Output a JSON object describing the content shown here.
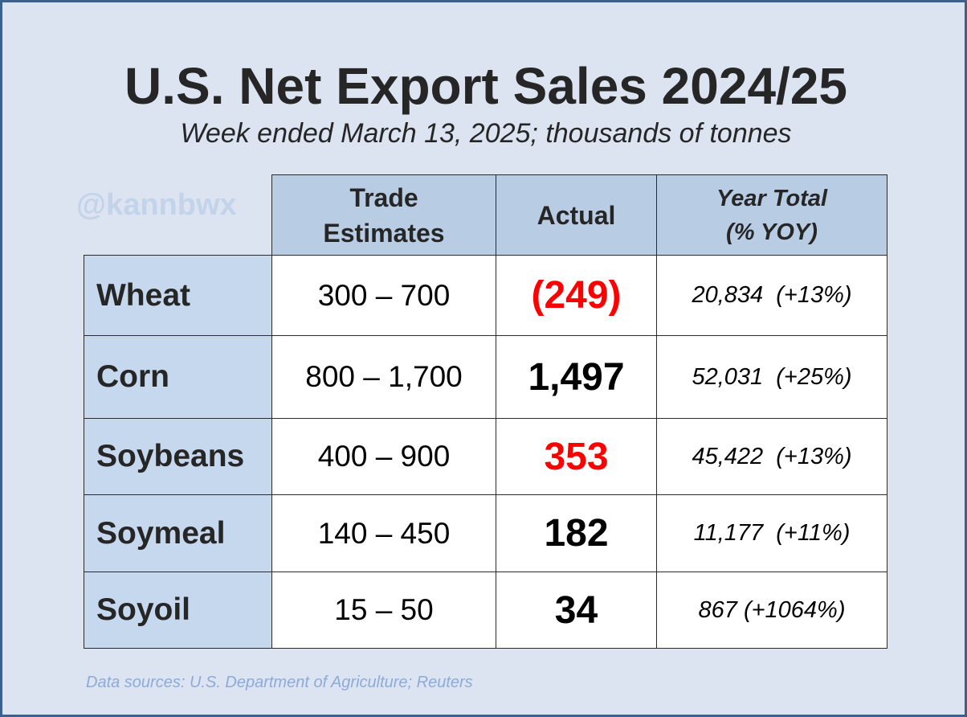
{
  "title": "U.S. Net Export Sales 2024/25",
  "subtitle": "Week ended March 13, 2025; thousands of tonnes",
  "watermark": "@kannbwx",
  "headers": {
    "estimates_line1": "Trade",
    "estimates_line2": "Estimates",
    "actual": "Actual",
    "total_line1": "Year Total",
    "total_line2": "(% YOY)"
  },
  "rows": [
    {
      "commodity": "Wheat",
      "estimates": "300 – 700",
      "actual": "(249)",
      "actual_color": "#ff0000",
      "year_total": "20,834  (+13%)"
    },
    {
      "commodity": "Corn",
      "estimates": "800 – 1,700",
      "actual": "1,497",
      "actual_color": "#000000",
      "year_total": "52,031  (+25%)"
    },
    {
      "commodity": "Soybeans",
      "estimates": "400 – 900",
      "actual": "353",
      "actual_color": "#ff0000",
      "year_total": "45,422  (+13%)"
    },
    {
      "commodity": "Soymeal",
      "estimates": "140 – 450",
      "actual": "182",
      "actual_color": "#000000",
      "year_total": "11,177  (+11%)"
    },
    {
      "commodity": "Soyoil",
      "estimates": "15 – 50",
      "actual": "34",
      "actual_color": "#000000",
      "year_total": "867 (+1064%)"
    }
  ],
  "source": "Data sources: U.S. Department of Agriculture; Reuters",
  "colors": {
    "background": "#dbe4f0",
    "header_fill": "#b8cce4",
    "row_header_fill": "#c6d8ee",
    "frame_border": "#3b5f8e",
    "negative_highlight": "#ff0000"
  }
}
